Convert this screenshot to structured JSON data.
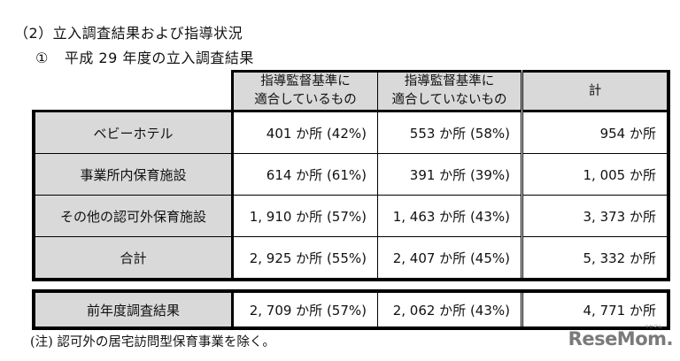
{
  "section": {
    "heading": "（2）立入調査結果および指導状況",
    "subheading_number": "①",
    "subheading": "平成 29 年度の立入調査結果"
  },
  "table": {
    "columns": [
      "指導監督基準に\n適合しているもの",
      "指導監督基準に\n適合していないもの",
      "計"
    ],
    "column_lines": [
      [
        "指導監督基準に",
        "適合しているもの"
      ],
      [
        "指導監督基準に",
        "適合していないもの"
      ],
      [
        "計"
      ]
    ],
    "rows": [
      {
        "label": "ベビーホテル",
        "compliant": "401 か所 (42%)",
        "noncompliant": "553 か所 (58%)",
        "total": "954 か所"
      },
      {
        "label": "事業所内保育施設",
        "compliant": "614 か所 (61%)",
        "noncompliant": "391 か所 (39%)",
        "total": "1, 005 か所"
      },
      {
        "label": "その他の認可外保育施設",
        "compliant": "1, 910 か所 (57%)",
        "noncompliant": "1, 463 か所 (43%)",
        "total": "3, 373 か所"
      },
      {
        "label": "合計",
        "compliant": "2, 925 か所 (55%)",
        "noncompliant": "2, 407 か所 (45%)",
        "total": "5, 332 か所"
      }
    ]
  },
  "previous_year": {
    "label": "前年度調査結果",
    "compliant": "2, 709 か所 (57%)",
    "noncompliant": "2, 062 か所 (43%)",
    "total": "4, 771 か所"
  },
  "note": "(注) 認可外の居宅訪問型保育事業を除く。",
  "watermark": {
    "text": "ReseMom.",
    "ruby": "リセマム"
  }
}
